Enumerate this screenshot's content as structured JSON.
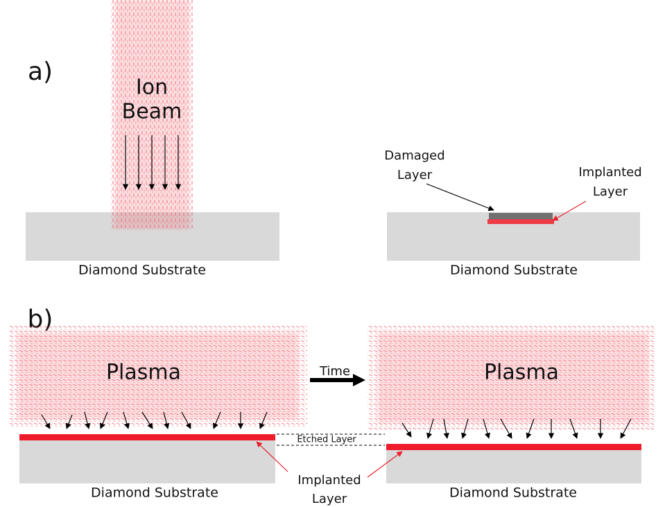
{
  "panel_a": {
    "label": "a)",
    "beam_label": [
      "Ion",
      "Beam"
    ],
    "left_substrate": "Diamond Substrate",
    "right_substrate": "Diamond Substrate",
    "damaged_layer": [
      "Damaged",
      "Layer"
    ],
    "implanted_layer": [
      "Implanted",
      "Layer"
    ]
  },
  "panel_b": {
    "label": "b)",
    "left_plasma": "Plasma",
    "right_plasma": "Plasma",
    "time": "Time",
    "etched_layer": "Etched Layer",
    "implanted_layer": [
      "Implanted",
      "Layer"
    ],
    "left_substrate": "Diamond Substrate",
    "right_substrate": "Diamond Substrate"
  }
}
